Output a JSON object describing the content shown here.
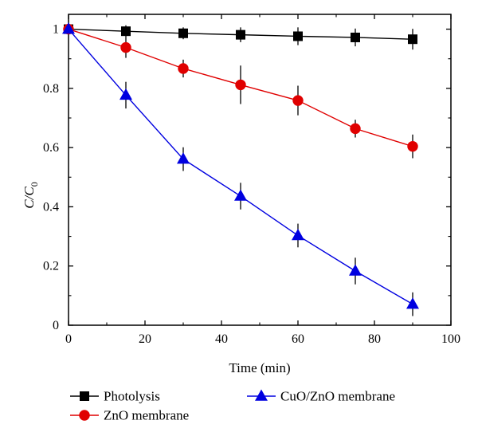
{
  "chart_data": {
    "type": "line",
    "xlabel": "Time (min)",
    "ylabel": {
      "main": "C/C",
      "sub": "0"
    },
    "xlim": [
      0,
      100
    ],
    "ylim": [
      0,
      1.05
    ],
    "x_ticks": [
      "0",
      "20",
      "40",
      "60",
      "80",
      "100"
    ],
    "y_ticks": [
      "0",
      "0.2",
      "0.4",
      "0.6",
      "0.8",
      "1"
    ],
    "x": [
      0,
      15,
      30,
      45,
      60,
      75,
      90
    ],
    "series": [
      {
        "name": "Photolysis",
        "color": "#000000",
        "marker": "square",
        "values": [
          1.0,
          0.993,
          0.986,
          0.981,
          0.976,
          0.972,
          0.966
        ],
        "error": [
          0.0,
          0.02,
          0.02,
          0.025,
          0.03,
          0.03,
          0.035
        ]
      },
      {
        "name": "ZnO membrane",
        "color": "#e00000",
        "marker": "circle",
        "values": [
          1.0,
          0.938,
          0.867,
          0.812,
          0.759,
          0.664,
          0.604
        ],
        "error": [
          0.0,
          0.035,
          0.03,
          0.065,
          0.05,
          0.03,
          0.04
        ]
      },
      {
        "name": "CuO/ZnO membrane",
        "color": "#0000e0",
        "marker": "triangle",
        "values": [
          1.0,
          0.777,
          0.561,
          0.436,
          0.303,
          0.183,
          0.071
        ],
        "error": [
          0.0,
          0.045,
          0.04,
          0.045,
          0.04,
          0.045,
          0.04
        ]
      }
    ],
    "legend_position": "bottom"
  }
}
